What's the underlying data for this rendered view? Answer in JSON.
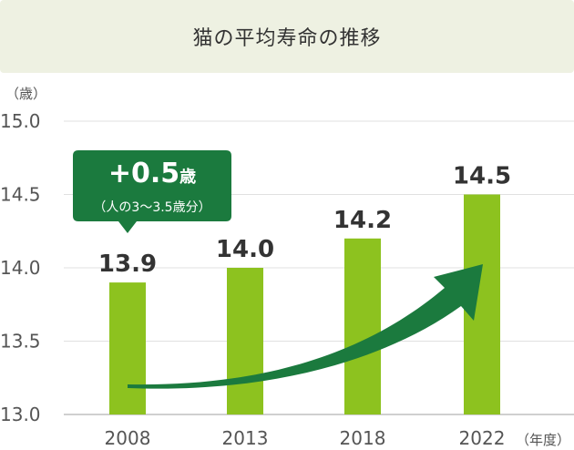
{
  "title": "猫の平均寿命の推移",
  "chart_data": {
    "type": "bar",
    "categories": [
      "2008",
      "2013",
      "2018",
      "2022"
    ],
    "values": [
      13.9,
      14.0,
      14.2,
      14.5
    ],
    "value_labels": [
      "13.9",
      "14.0",
      "14.2",
      "14.5"
    ],
    "y_ticks": [
      "15.0",
      "14.5",
      "14.0",
      "13.5",
      "13.0"
    ],
    "ylim": [
      13.0,
      15.0
    ],
    "ylabel": "（歳）",
    "xlabel": "（年度）",
    "grid": true,
    "colors": {
      "bar": "#8dc21f",
      "accent": "#1b7a3e"
    },
    "annotation": {
      "main": "+0.5",
      "unit": "歳",
      "sub": "（人の3〜3.5歳分）"
    }
  }
}
